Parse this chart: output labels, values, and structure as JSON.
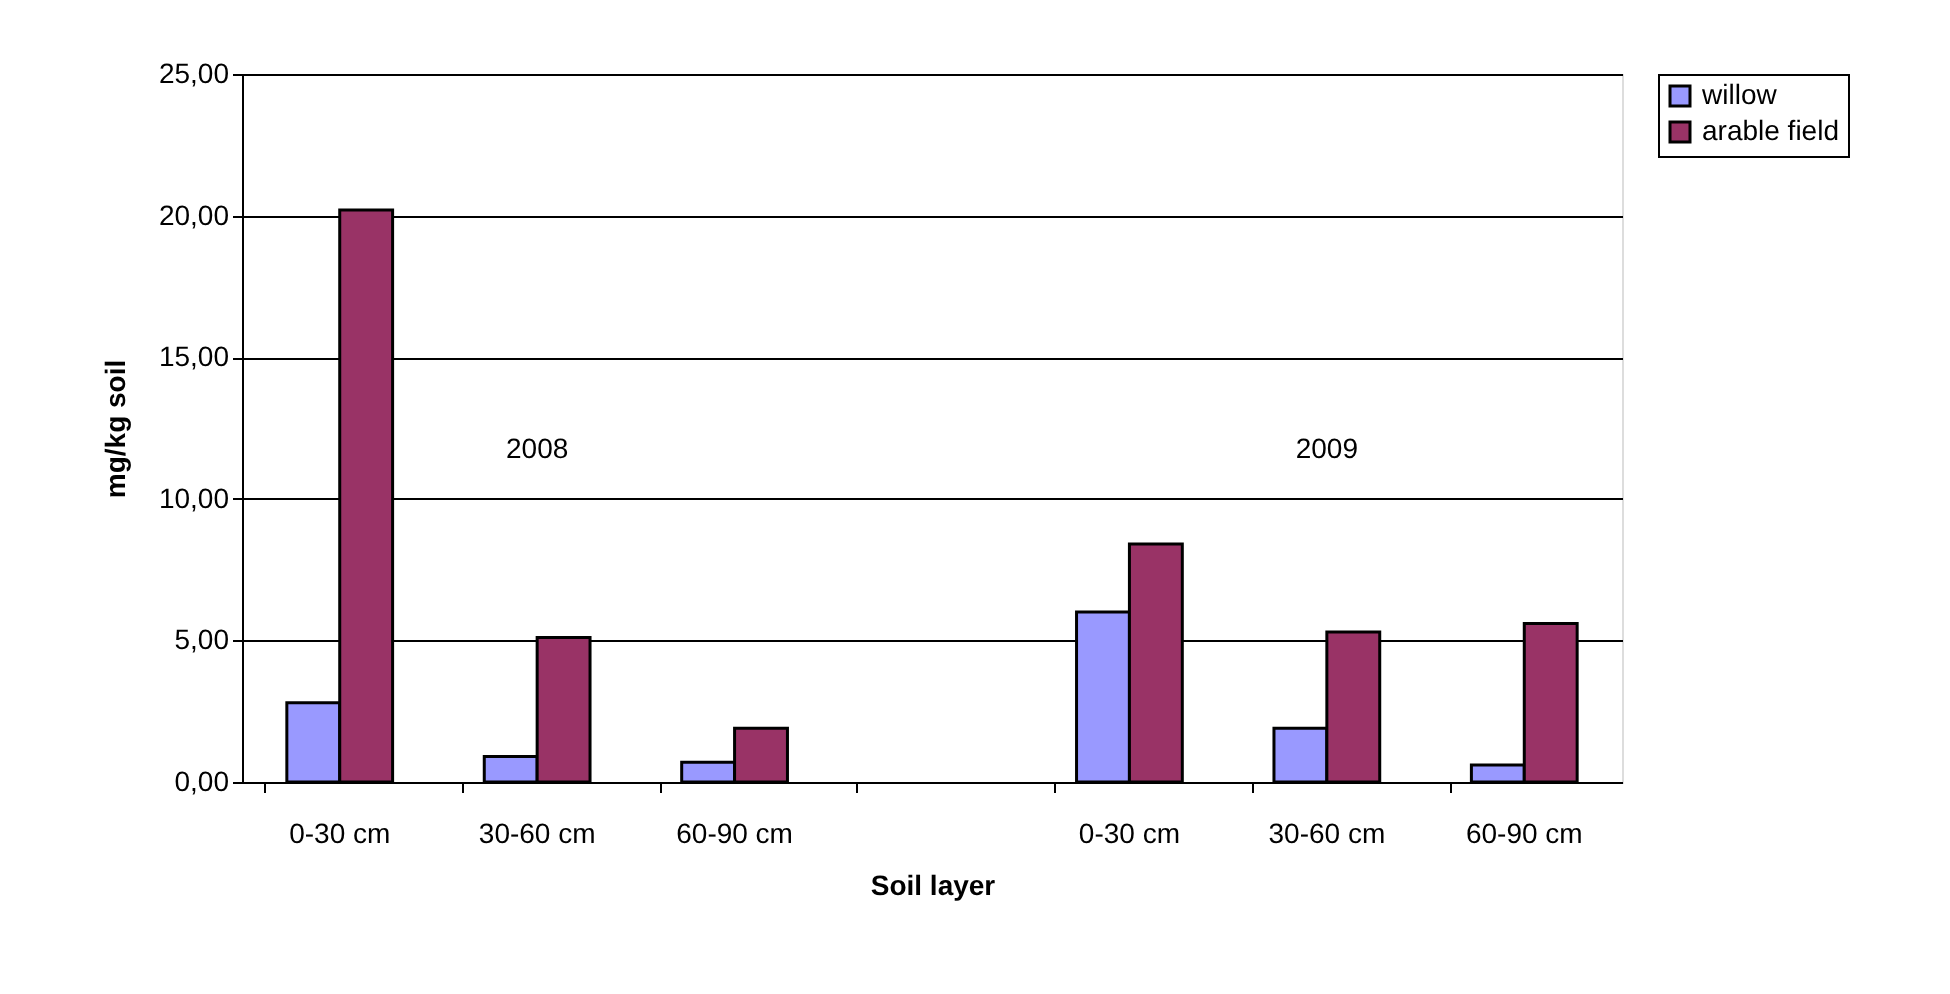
{
  "chart_data": {
    "type": "bar",
    "xlabel": "Soil layer",
    "ylabel": "mg/kg soil",
    "categories": [
      "0-30 cm",
      "30-60 cm",
      "60-90 cm",
      null,
      "0-30 cm",
      "30-60 cm",
      "60-90 cm"
    ],
    "series": [
      {
        "name": "willow",
        "color": "#9999ff",
        "values": [
          2.8,
          0.9,
          0.7,
          null,
          6.0,
          1.9,
          0.6
        ]
      },
      {
        "name": "arable field",
        "color": "#993366",
        "values": [
          20.2,
          5.1,
          1.9,
          null,
          8.4,
          5.3,
          5.6
        ]
      }
    ],
    "ylim": [
      0,
      25
    ],
    "yticks": [
      {
        "value": 0,
        "label": "0,00"
      },
      {
        "value": 5,
        "label": "5,00"
      },
      {
        "value": 10,
        "label": "10,00"
      },
      {
        "value": 15,
        "label": "15,00"
      },
      {
        "value": 20,
        "label": "20,00"
      },
      {
        "value": 25,
        "label": "25,00"
      }
    ],
    "annotations": [
      "2008",
      "2009"
    ],
    "grid": "y",
    "legend": "right"
  }
}
